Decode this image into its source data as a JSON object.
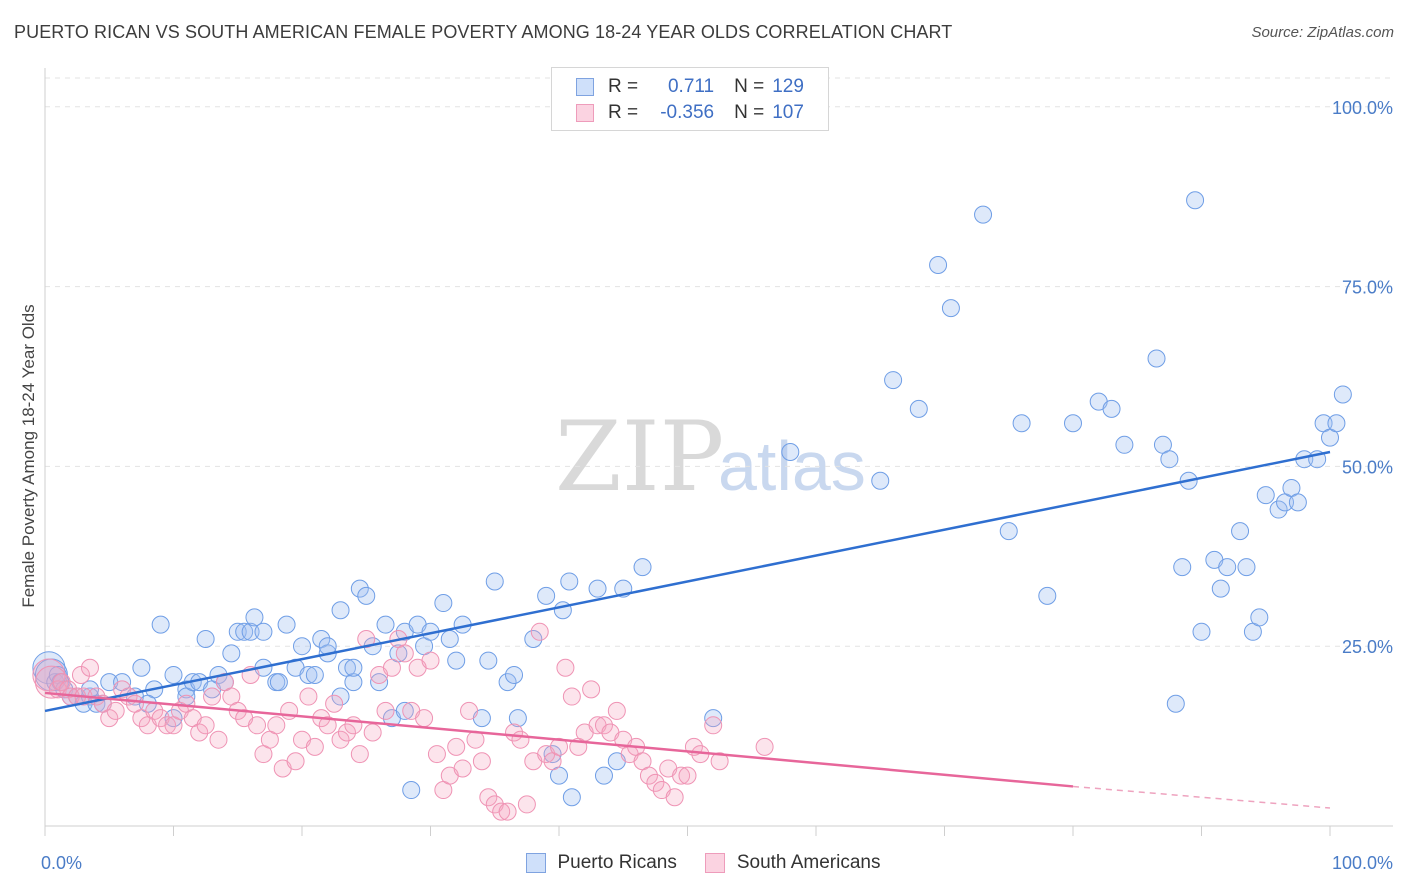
{
  "title": "PUERTO RICAN VS SOUTH AMERICAN FEMALE POVERTY AMONG 18-24 YEAR OLDS CORRELATION CHART",
  "source": "Source: ZipAtlas.com",
  "watermark": {
    "zip": "ZIP",
    "atlas": "atlas"
  },
  "legend": {
    "rows": [
      {
        "r_label": "R =",
        "r_value": "0.711",
        "n_label": "N =",
        "n_value": "129",
        "color": "#8fb1e8"
      },
      {
        "r_label": "R =",
        "r_value": "-0.356",
        "n_label": "N =",
        "n_value": "107",
        "color": "#f4a6c0"
      }
    ]
  },
  "bottom_legend": [
    {
      "label": "Puerto Ricans",
      "color": "#8fb1e8"
    },
    {
      "label": "South Americans",
      "color": "#f4a6c0"
    }
  ],
  "chart_data": {
    "type": "scatter",
    "ylabel": "Female Poverty Among 18-24 Year Olds",
    "x_tick_labels": [
      "0.0%",
      "100.0%"
    ],
    "y_tick_labels": [
      "100.0%",
      "75.0%",
      "50.0%",
      "25.0%"
    ],
    "y_ticks": [
      100,
      75,
      50,
      25
    ],
    "xlim": [
      0,
      100
    ],
    "ylim": [
      0,
      100
    ],
    "grid": true,
    "series": [
      {
        "name": "Puerto Ricans",
        "color": "#6f9ee6",
        "trend": {
          "x0": 0,
          "y0": 16,
          "x1": 100,
          "y1": 52
        },
        "points": [
          [
            0.3,
            22
          ],
          [
            0.5,
            21
          ],
          [
            0.8,
            20
          ],
          [
            1,
            21
          ],
          [
            1.2,
            20
          ],
          [
            1.5,
            19
          ],
          [
            2,
            18
          ],
          [
            2.5,
            18
          ],
          [
            3,
            17
          ],
          [
            3.5,
            18
          ],
          [
            4,
            17
          ],
          [
            4.5,
            17
          ],
          [
            3.5,
            19
          ],
          [
            5,
            20
          ],
          [
            6,
            20
          ],
          [
            7,
            18
          ],
          [
            7.5,
            22
          ],
          [
            8.5,
            19
          ],
          [
            8,
            17
          ],
          [
            9,
            28
          ],
          [
            10,
            15
          ],
          [
            10,
            21
          ],
          [
            11,
            19
          ],
          [
            11,
            18
          ],
          [
            11.5,
            20
          ],
          [
            12,
            20
          ],
          [
            12.5,
            26
          ],
          [
            13,
            19
          ],
          [
            13.5,
            21
          ],
          [
            14,
            20
          ],
          [
            14.5,
            24
          ],
          [
            15,
            27
          ],
          [
            15.5,
            27
          ],
          [
            16,
            27
          ],
          [
            16.3,
            29
          ],
          [
            17,
            27
          ],
          [
            17,
            22
          ],
          [
            18,
            20
          ],
          [
            18.2,
            20
          ],
          [
            18.8,
            28
          ],
          [
            19.5,
            22
          ],
          [
            20,
            25
          ],
          [
            20.5,
            21
          ],
          [
            21,
            21
          ],
          [
            21.5,
            26
          ],
          [
            22,
            24
          ],
          [
            22,
            25
          ],
          [
            23,
            30
          ],
          [
            23,
            18
          ],
          [
            23.5,
            22
          ],
          [
            24,
            20
          ],
          [
            24,
            22
          ],
          [
            24.5,
            33
          ],
          [
            25,
            32
          ],
          [
            25.5,
            25
          ],
          [
            26,
            20
          ],
          [
            26.5,
            28
          ],
          [
            27,
            15
          ],
          [
            27.5,
            24
          ],
          [
            28,
            27
          ],
          [
            28,
            16
          ],
          [
            28.5,
            5
          ],
          [
            29,
            28
          ],
          [
            29.5,
            25
          ],
          [
            30,
            27
          ],
          [
            31,
            31
          ],
          [
            31.5,
            26
          ],
          [
            32,
            23
          ],
          [
            32.5,
            28
          ],
          [
            34,
            15
          ],
          [
            34.5,
            23
          ],
          [
            35,
            34
          ],
          [
            36,
            20
          ],
          [
            36.5,
            21
          ],
          [
            36.8,
            15
          ],
          [
            38,
            26
          ],
          [
            39,
            32
          ],
          [
            39.5,
            10
          ],
          [
            40,
            7
          ],
          [
            40.3,
            30
          ],
          [
            40.8,
            34
          ],
          [
            41,
            4
          ],
          [
            43,
            33
          ],
          [
            43.5,
            7
          ],
          [
            44.5,
            9
          ],
          [
            45,
            33
          ],
          [
            46.5,
            36
          ],
          [
            52,
            15
          ],
          [
            58,
            52
          ],
          [
            65,
            48
          ],
          [
            66,
            62
          ],
          [
            68,
            58
          ],
          [
            69.5,
            78
          ],
          [
            70.5,
            72
          ],
          [
            73,
            85
          ],
          [
            75,
            41
          ],
          [
            76,
            56
          ],
          [
            78,
            32
          ],
          [
            80,
            56
          ],
          [
            82,
            59
          ],
          [
            83,
            58
          ],
          [
            84,
            53
          ],
          [
            86.5,
            65
          ],
          [
            87,
            53
          ],
          [
            87.5,
            51
          ],
          [
            88,
            17
          ],
          [
            88.5,
            36
          ],
          [
            89,
            48
          ],
          [
            89.5,
            87
          ],
          [
            90,
            27
          ],
          [
            91,
            37
          ],
          [
            91.5,
            33
          ],
          [
            92,
            36
          ],
          [
            93,
            41
          ],
          [
            93.5,
            36
          ],
          [
            94,
            27
          ],
          [
            94.5,
            29
          ],
          [
            95,
            46
          ],
          [
            96,
            44
          ],
          [
            96.5,
            45
          ],
          [
            97,
            47
          ],
          [
            97.5,
            45
          ],
          [
            98,
            51
          ],
          [
            99,
            51
          ],
          [
            99.5,
            56
          ],
          [
            100,
            54
          ],
          [
            100.5,
            56
          ],
          [
            101,
            60
          ]
        ]
      },
      {
        "name": "South Americans",
        "color": "#f08cb0",
        "trend": {
          "x0": 0,
          "y0": 18.5,
          "x1": 80,
          "y1": 5.5,
          "dash_to": 100,
          "dash_y": 2.5
        },
        "points": [
          [
            0.3,
            21
          ],
          [
            0.5,
            20
          ],
          [
            1,
            19
          ],
          [
            1.3,
            20
          ],
          [
            1.8,
            19
          ],
          [
            2,
            18
          ],
          [
            2.5,
            18
          ],
          [
            2.8,
            21
          ],
          [
            3,
            18
          ],
          [
            3.5,
            22
          ],
          [
            4,
            18
          ],
          [
            4.5,
            17
          ],
          [
            5,
            15
          ],
          [
            5.5,
            16
          ],
          [
            6,
            19
          ],
          [
            6.5,
            18
          ],
          [
            7,
            17
          ],
          [
            7.5,
            15
          ],
          [
            8,
            14
          ],
          [
            8.5,
            16
          ],
          [
            9,
            15
          ],
          [
            9.5,
            14
          ],
          [
            10,
            14
          ],
          [
            10.5,
            16
          ],
          [
            11,
            17
          ],
          [
            11.5,
            15
          ],
          [
            12,
            13
          ],
          [
            12.5,
            14
          ],
          [
            13,
            18
          ],
          [
            13.5,
            12
          ],
          [
            14,
            20
          ],
          [
            14.5,
            18
          ],
          [
            15,
            16
          ],
          [
            15.5,
            15
          ],
          [
            16,
            21
          ],
          [
            16.5,
            14
          ],
          [
            17,
            10
          ],
          [
            17.5,
            12
          ],
          [
            18,
            14
          ],
          [
            18.5,
            8
          ],
          [
            19,
            16
          ],
          [
            19.5,
            9
          ],
          [
            20,
            12
          ],
          [
            20.5,
            18
          ],
          [
            21,
            11
          ],
          [
            21.5,
            15
          ],
          [
            22,
            14
          ],
          [
            22.5,
            17
          ],
          [
            23,
            12
          ],
          [
            23.5,
            13
          ],
          [
            24,
            14
          ],
          [
            24.5,
            10
          ],
          [
            25,
            26
          ],
          [
            25.5,
            13
          ],
          [
            26,
            21
          ],
          [
            26.5,
            16
          ],
          [
            27,
            22
          ],
          [
            27.5,
            26
          ],
          [
            28,
            24
          ],
          [
            28.5,
            16
          ],
          [
            29,
            22
          ],
          [
            29.5,
            15
          ],
          [
            30,
            23
          ],
          [
            30.5,
            10
          ],
          [
            31,
            5
          ],
          [
            31.5,
            7
          ],
          [
            32,
            11
          ],
          [
            32.5,
            8
          ],
          [
            33,
            16
          ],
          [
            33.5,
            12
          ],
          [
            34,
            9
          ],
          [
            34.5,
            4
          ],
          [
            35,
            3
          ],
          [
            35.5,
            2
          ],
          [
            36,
            2
          ],
          [
            36.5,
            13
          ],
          [
            37,
            12
          ],
          [
            37.5,
            3
          ],
          [
            38,
            9
          ],
          [
            38.5,
            27
          ],
          [
            39,
            10
          ],
          [
            39.5,
            9
          ],
          [
            40,
            11
          ],
          [
            40.5,
            22
          ],
          [
            41,
            18
          ],
          [
            41.5,
            11
          ],
          [
            42,
            13
          ],
          [
            42.5,
            19
          ],
          [
            43,
            14
          ],
          [
            43.5,
            14
          ],
          [
            44,
            13
          ],
          [
            44.5,
            16
          ],
          [
            45,
            12
          ],
          [
            45.5,
            10
          ],
          [
            46,
            11
          ],
          [
            46.5,
            9
          ],
          [
            47,
            7
          ],
          [
            47.5,
            6
          ],
          [
            48,
            5
          ],
          [
            48.5,
            8
          ],
          [
            49,
            4
          ],
          [
            49.5,
            7
          ],
          [
            50,
            7
          ],
          [
            50.5,
            11
          ],
          [
            51,
            10
          ],
          [
            52,
            14
          ],
          [
            52.5,
            9
          ],
          [
            56,
            11
          ]
        ]
      }
    ]
  }
}
